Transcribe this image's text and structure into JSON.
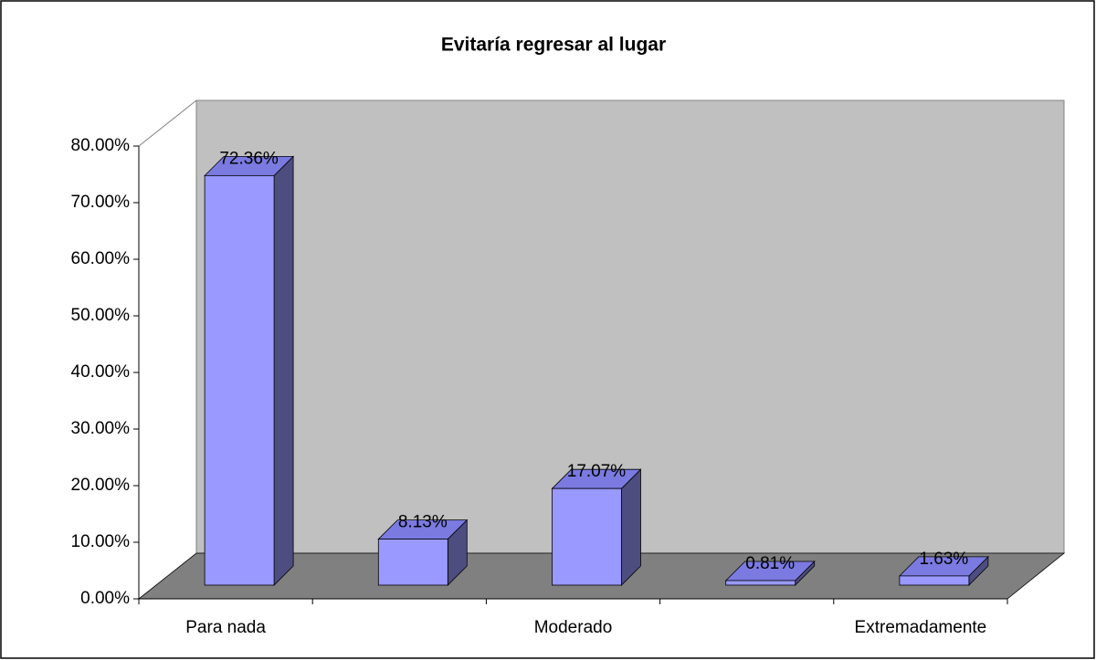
{
  "chart_data": {
    "type": "bar3d",
    "title": "Evitaría regresar al lugar",
    "categories": [
      "Para nada",
      null,
      "Moderado",
      null,
      "Extremadamente"
    ],
    "values": [
      72.36,
      8.13,
      17.07,
      0.81,
      1.63
    ],
    "value_labels": [
      "72.36%",
      "8.13%",
      "17.07%",
      "0.81%",
      "1.63%"
    ],
    "color": "#9999ff",
    "ylim": [
      0,
      80
    ],
    "yticks": [
      {
        "value": 0,
        "label": "0.00%"
      },
      {
        "value": 10,
        "label": "10.00%"
      },
      {
        "value": 20,
        "label": "20.00%"
      },
      {
        "value": 30,
        "label": "30.00%"
      },
      {
        "value": 40,
        "label": "40.00%"
      },
      {
        "value": 50,
        "label": "50.00%"
      },
      {
        "value": 60,
        "label": "60.00%"
      },
      {
        "value": 70,
        "label": "70.00%"
      },
      {
        "value": 80,
        "label": "80.00%"
      }
    ],
    "grid": false
  }
}
